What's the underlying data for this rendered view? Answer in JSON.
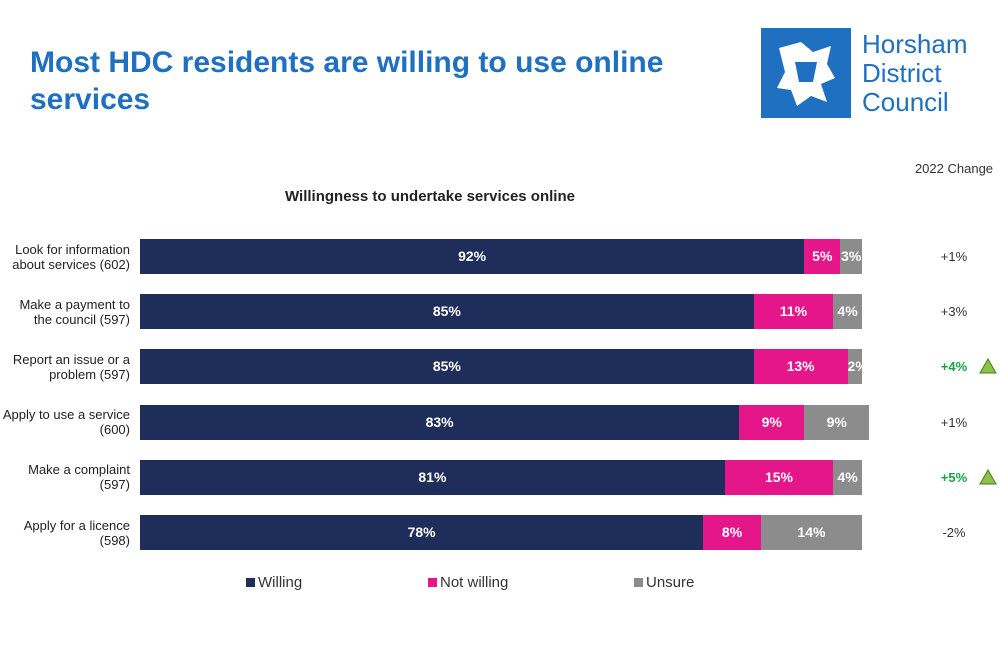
{
  "header": {
    "title": "Most HDC residents are willing to use online services",
    "logo_text": "Horsham District Council"
  },
  "chart_data": {
    "type": "stacked-bar-horizontal",
    "title": "Willingness to undertake services online",
    "categories": [
      "Look for information about services (602)",
      "Make a payment to the council (597)",
      "Report an issue or a problem (597)",
      "Apply to use a service (600)",
      "Make a complaint (597)",
      "Apply for a licence (598)"
    ],
    "xlim": [
      0,
      100
    ],
    "series": [
      {
        "name": "Willing",
        "color": "#1f2d5a",
        "values": [
          92,
          85,
          85,
          83,
          81,
          78
        ],
        "value_labels": [
          "92%",
          "85%",
          "85%",
          "83%",
          "81%",
          "78%"
        ]
      },
      {
        "name": "Not willing",
        "color": "#e5158a",
        "values": [
          5,
          11,
          13,
          9,
          15,
          8
        ],
        "value_labels": [
          "5%",
          "11%",
          "13%",
          "9%",
          "15%",
          "8%"
        ]
      },
      {
        "name": "Unsure",
        "color": "#8c8c8c",
        "values": [
          3,
          4,
          2,
          9,
          4,
          14
        ],
        "value_labels": [
          "3%",
          "4%",
          "2%",
          "9%",
          "4%",
          "14%"
        ]
      }
    ],
    "change": {
      "header": "2022 Change",
      "values": [
        1,
        3,
        4,
        1,
        5,
        -2
      ],
      "value_labels": [
        "+1%",
        "+3%",
        "+4%",
        "+1%",
        "+5%",
        "-2%"
      ],
      "significant": [
        false,
        false,
        true,
        false,
        true,
        false
      ],
      "significant_color": "#16a34a"
    }
  }
}
